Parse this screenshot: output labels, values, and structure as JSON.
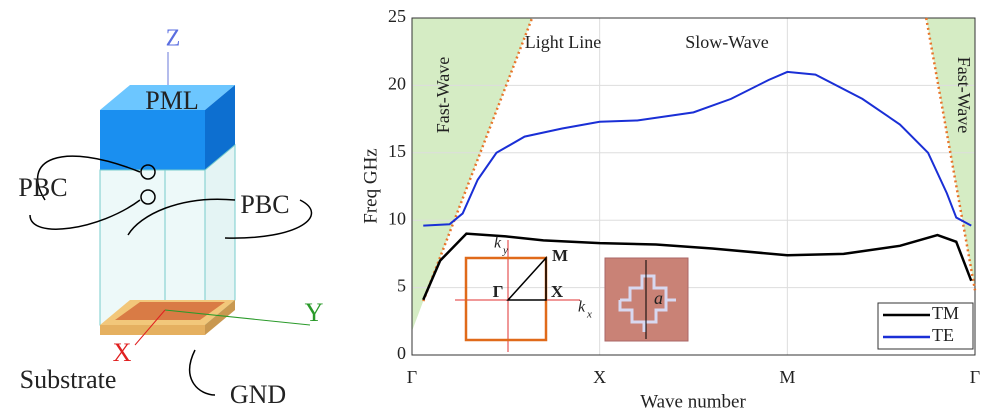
{
  "diagram": {
    "labels": {
      "z": "Z",
      "pml": "PML",
      "pbc_left": "PBC",
      "pbc_right": "PBC",
      "y": "Y",
      "x": "X",
      "substrate": "Substrate",
      "gnd": "GND"
    }
  },
  "chart_data": {
    "type": "line",
    "x_label": "Wave number",
    "y_label": "Freq GHz",
    "xlim": [
      0,
      3
    ],
    "ylim": [
      0,
      25
    ],
    "xticks": [
      {
        "value": 0,
        "label": "Γ"
      },
      {
        "value": 1,
        "label": "X"
      },
      {
        "value": 2,
        "label": "M"
      },
      {
        "value": 3,
        "label": "Γ"
      }
    ],
    "yticks": [
      0,
      5,
      10,
      15,
      20,
      25
    ],
    "grid": true,
    "legend": "lower right",
    "annotations": {
      "fast_wave_left": "Fast-Wave",
      "fast_wave_right": "Fast-Wave",
      "light_line": "Light Line",
      "slow_wave": "Slow-Wave"
    },
    "light_line": {
      "color": "#e8742a",
      "fill": "#d5ecc4",
      "segments": [
        {
          "x": [
            0.06,
            0.64
          ],
          "values": [
            4,
            25
          ]
        },
        {
          "x": [
            2.74,
            3.0
          ],
          "values": [
            25,
            4.8
          ]
        }
      ]
    },
    "series": [
      {
        "name": "TM",
        "color": "#000000",
        "x": [
          0.06,
          0.15,
          0.29,
          0.5,
          0.7,
          1.0,
          1.3,
          1.6,
          2.0,
          2.3,
          2.6,
          2.8,
          2.9,
          2.98
        ],
        "values": [
          4.1,
          7.0,
          9.0,
          8.8,
          8.5,
          8.3,
          8.2,
          7.9,
          7.4,
          7.5,
          8.1,
          8.9,
          8.4,
          5.5
        ]
      },
      {
        "name": "TE",
        "color": "#1a2fd6",
        "x": [
          0.06,
          0.2,
          0.27,
          0.35,
          0.45,
          0.6,
          0.8,
          1.0,
          1.2,
          1.5,
          1.7,
          1.9,
          2.0,
          2.15,
          2.4,
          2.6,
          2.75,
          2.85,
          2.9,
          2.98
        ],
        "values": [
          9.6,
          9.7,
          10.5,
          13.0,
          15.0,
          16.2,
          16.8,
          17.3,
          17.4,
          18.0,
          19.0,
          20.4,
          21.0,
          20.8,
          19.0,
          17.1,
          15.0,
          12.0,
          10.2,
          9.6
        ]
      }
    ],
    "insets": {
      "brillouin": {
        "gamma": "Γ",
        "x": "X",
        "m": "M",
        "ky": "k",
        "ky_sub": "y",
        "kx": "k",
        "kx_sub": "x"
      },
      "unit_cell": {
        "a": "a"
      }
    }
  }
}
